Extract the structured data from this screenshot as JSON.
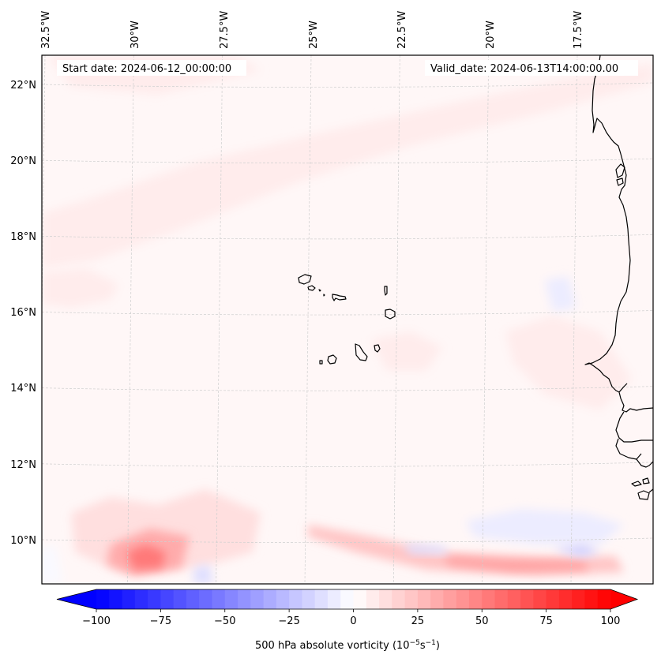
{
  "chart_data": {
    "type": "heatmap",
    "title": "",
    "variable": "500 hPa absolute vorticity",
    "units_label_base": "500 hPa absolute vorticity (10",
    "units_exp1": "−5",
    "units_mid": "s",
    "units_exp2": "−1",
    "units_close": ")",
    "annotations": {
      "start_date": "Start date: 2024-06-12_00:00:00",
      "valid_date": "Valid_date: 2024-06-13T14:00:00.00"
    },
    "lon_ticks": [
      {
        "label": "32.5°W",
        "value": -32.5
      },
      {
        "label": "30°W",
        "value": -30
      },
      {
        "label": "27.5°W",
        "value": -27.5
      },
      {
        "label": "25°W",
        "value": -25
      },
      {
        "label": "22.5°W",
        "value": -22.5
      },
      {
        "label": "20°W",
        "value": -20
      },
      {
        "label": "17.5°W",
        "value": -17.5
      }
    ],
    "lat_ticks": [
      {
        "label": "22°N",
        "value": 22
      },
      {
        "label": "20°N",
        "value": 20
      },
      {
        "label": "18°N",
        "value": 18
      },
      {
        "label": "16°N",
        "value": 16
      },
      {
        "label": "14°N",
        "value": 14
      },
      {
        "label": "12°N",
        "value": 12
      },
      {
        "label": "10°N",
        "value": 10
      }
    ],
    "extent": {
      "lon": [
        -32.6,
        -15.0
      ],
      "lat": [
        8.9,
        22.8
      ]
    },
    "grid": true,
    "colorbar": {
      "cmap": "bwr",
      "vmin": -100,
      "vmax": 100,
      "step": 5,
      "extend": "both",
      "ticks": [
        -100,
        -75,
        -50,
        -25,
        0,
        25,
        50,
        75,
        100
      ],
      "tick_labels": [
        "−100",
        "−75",
        "−50",
        "−25",
        "0",
        "25",
        "50",
        "75",
        "100"
      ],
      "placement": "bottom"
    },
    "features": [
      {
        "name": "vorticity-max-southwest",
        "lon": -29.3,
        "lat": 9.4,
        "value": 45
      },
      {
        "name": "positive-band-south",
        "lon_range": [
          -24,
          -16.5
        ],
        "lat": 9.4,
        "value": 30
      },
      {
        "name": "negative-band-south",
        "lon_range": [
          -21,
          -16
        ],
        "lat": 9.9,
        "value": -15
      },
      {
        "name": "positive-band-northwest",
        "lon_range": [
          -32.5,
          -16
        ],
        "lat_range": [
          18,
          21.5
        ],
        "value": 8
      },
      {
        "name": "background",
        "value": 2
      }
    ],
    "coastlines": [
      "Cape Verde islands",
      "West Africa coast (Mauritania, Senegal, Gambia, Guinea-Bissau)"
    ]
  }
}
